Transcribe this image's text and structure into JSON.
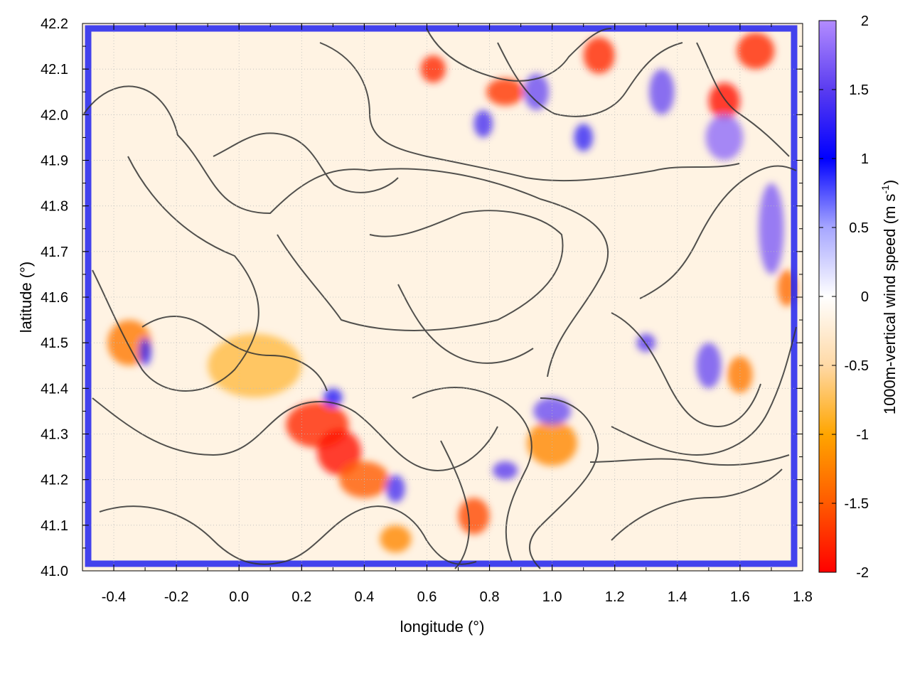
{
  "chart_data": {
    "type": "heatmap",
    "title": "",
    "xlabel": "longitude (°)",
    "ylabel": "latitude (°)",
    "xlim": [
      -0.5,
      1.8
    ],
    "ylim": [
      41.0,
      42.2
    ],
    "x_ticks": [
      -0.4,
      -0.2,
      0.0,
      0.2,
      0.4,
      0.6,
      0.8,
      1.0,
      1.2,
      1.4,
      1.6,
      1.8
    ],
    "x_tick_labels": [
      "-0.4",
      "-0.2",
      "0.0",
      "0.2",
      "0.4",
      "0.6",
      "0.8",
      "1.0",
      "1.2",
      "1.4",
      "1.6",
      "1.8"
    ],
    "y_ticks": [
      41.0,
      41.1,
      41.2,
      41.3,
      41.4,
      41.5,
      41.6,
      41.7,
      41.8,
      41.9,
      42.0,
      42.1,
      42.2
    ],
    "y_tick_labels": [
      "41.0",
      "41.1",
      "41.2",
      "41.3",
      "41.4",
      "41.5",
      "41.6",
      "41.7",
      "41.8",
      "41.9",
      "42.0",
      "42.1",
      "42.2"
    ],
    "grid": true,
    "colorbar": {
      "label_main": "1000m-vertical wind speed (m s",
      "label_sup": "-1",
      "label_end": ")",
      "range": [
        -2,
        2
      ],
      "ticks": [
        -2,
        -1.5,
        -1,
        -0.5,
        0,
        0.5,
        1,
        1.5,
        2
      ],
      "tick_labels": [
        "-2",
        "-1.5",
        "-1",
        "-0.5",
        "0",
        "0.5",
        "1",
        "1.5",
        "2"
      ],
      "color_stops": [
        {
          "value": -2,
          "color": "#ff0000"
        },
        {
          "value": -1.5,
          "color": "#ff5a00"
        },
        {
          "value": -1,
          "color": "#ffa500"
        },
        {
          "value": -0.5,
          "color": "#ffd9a6"
        },
        {
          "value": 0,
          "color": "#ffffff"
        },
        {
          "value": 0.5,
          "color": "#a6a6ff"
        },
        {
          "value": 1,
          "color": "#0000ff"
        },
        {
          "value": 1.5,
          "color": "#5a3cf0"
        },
        {
          "value": 2,
          "color": "#b38cff"
        }
      ]
    },
    "anomalies": [
      {
        "x": 0.25,
        "y": 41.32,
        "value": -1.8,
        "rx": 0.1,
        "ry": 0.05
      },
      {
        "x": 0.32,
        "y": 41.26,
        "value": -1.9,
        "rx": 0.07,
        "ry": 0.05
      },
      {
        "x": 0.4,
        "y": 41.2,
        "value": -1.5,
        "rx": 0.08,
        "ry": 0.04
      },
      {
        "x": -0.35,
        "y": 41.5,
        "value": -1.3,
        "rx": 0.07,
        "ry": 0.05
      },
      {
        "x": 0.75,
        "y": 41.12,
        "value": -1.6,
        "rx": 0.05,
        "ry": 0.04
      },
      {
        "x": 0.62,
        "y": 42.1,
        "value": -1.8,
        "rx": 0.04,
        "ry": 0.03
      },
      {
        "x": 0.85,
        "y": 42.05,
        "value": -1.7,
        "rx": 0.06,
        "ry": 0.03
      },
      {
        "x": 1.15,
        "y": 42.13,
        "value": -1.8,
        "rx": 0.05,
        "ry": 0.04
      },
      {
        "x": 1.55,
        "y": 42.03,
        "value": -1.9,
        "rx": 0.05,
        "ry": 0.04
      },
      {
        "x": 1.65,
        "y": 42.14,
        "value": -1.8,
        "rx": 0.06,
        "ry": 0.04
      },
      {
        "x": 1.0,
        "y": 41.28,
        "value": -1.2,
        "rx": 0.08,
        "ry": 0.05
      },
      {
        "x": 1.6,
        "y": 41.43,
        "value": -1.3,
        "rx": 0.04,
        "ry": 0.04
      },
      {
        "x": 1.75,
        "y": 41.62,
        "value": -1.4,
        "rx": 0.03,
        "ry": 0.04
      },
      {
        "x": 0.5,
        "y": 41.07,
        "value": -1.2,
        "rx": 0.05,
        "ry": 0.03
      },
      {
        "x": 0.05,
        "y": 41.45,
        "value": -0.8,
        "rx": 0.15,
        "ry": 0.07
      },
      {
        "x": 1.0,
        "y": 41.35,
        "value": 1.6,
        "rx": 0.06,
        "ry": 0.03
      },
      {
        "x": 1.55,
        "y": 41.95,
        "value": 1.8,
        "rx": 0.06,
        "ry": 0.05
      },
      {
        "x": 1.7,
        "y": 41.75,
        "value": 1.7,
        "rx": 0.04,
        "ry": 0.1
      },
      {
        "x": 1.5,
        "y": 41.45,
        "value": 1.6,
        "rx": 0.04,
        "ry": 0.05
      },
      {
        "x": 1.3,
        "y": 41.5,
        "value": 1.5,
        "rx": 0.03,
        "ry": 0.02
      },
      {
        "x": 0.95,
        "y": 42.05,
        "value": 1.6,
        "rx": 0.04,
        "ry": 0.04
      },
      {
        "x": 0.78,
        "y": 41.98,
        "value": 1.4,
        "rx": 0.03,
        "ry": 0.03
      },
      {
        "x": 0.85,
        "y": 41.22,
        "value": 1.5,
        "rx": 0.04,
        "ry": 0.02
      },
      {
        "x": 0.5,
        "y": 41.18,
        "value": 1.4,
        "rx": 0.03,
        "ry": 0.03
      },
      {
        "x": 0.3,
        "y": 41.38,
        "value": 1.2,
        "rx": 0.03,
        "ry": 0.02
      },
      {
        "x": -0.3,
        "y": 41.48,
        "value": 1.3,
        "rx": 0.02,
        "ry": 0.03
      },
      {
        "x": 1.1,
        "y": 41.95,
        "value": 1.3,
        "rx": 0.03,
        "ry": 0.03
      },
      {
        "x": 1.35,
        "y": 42.05,
        "value": 1.6,
        "rx": 0.04,
        "ry": 0.05
      }
    ]
  }
}
